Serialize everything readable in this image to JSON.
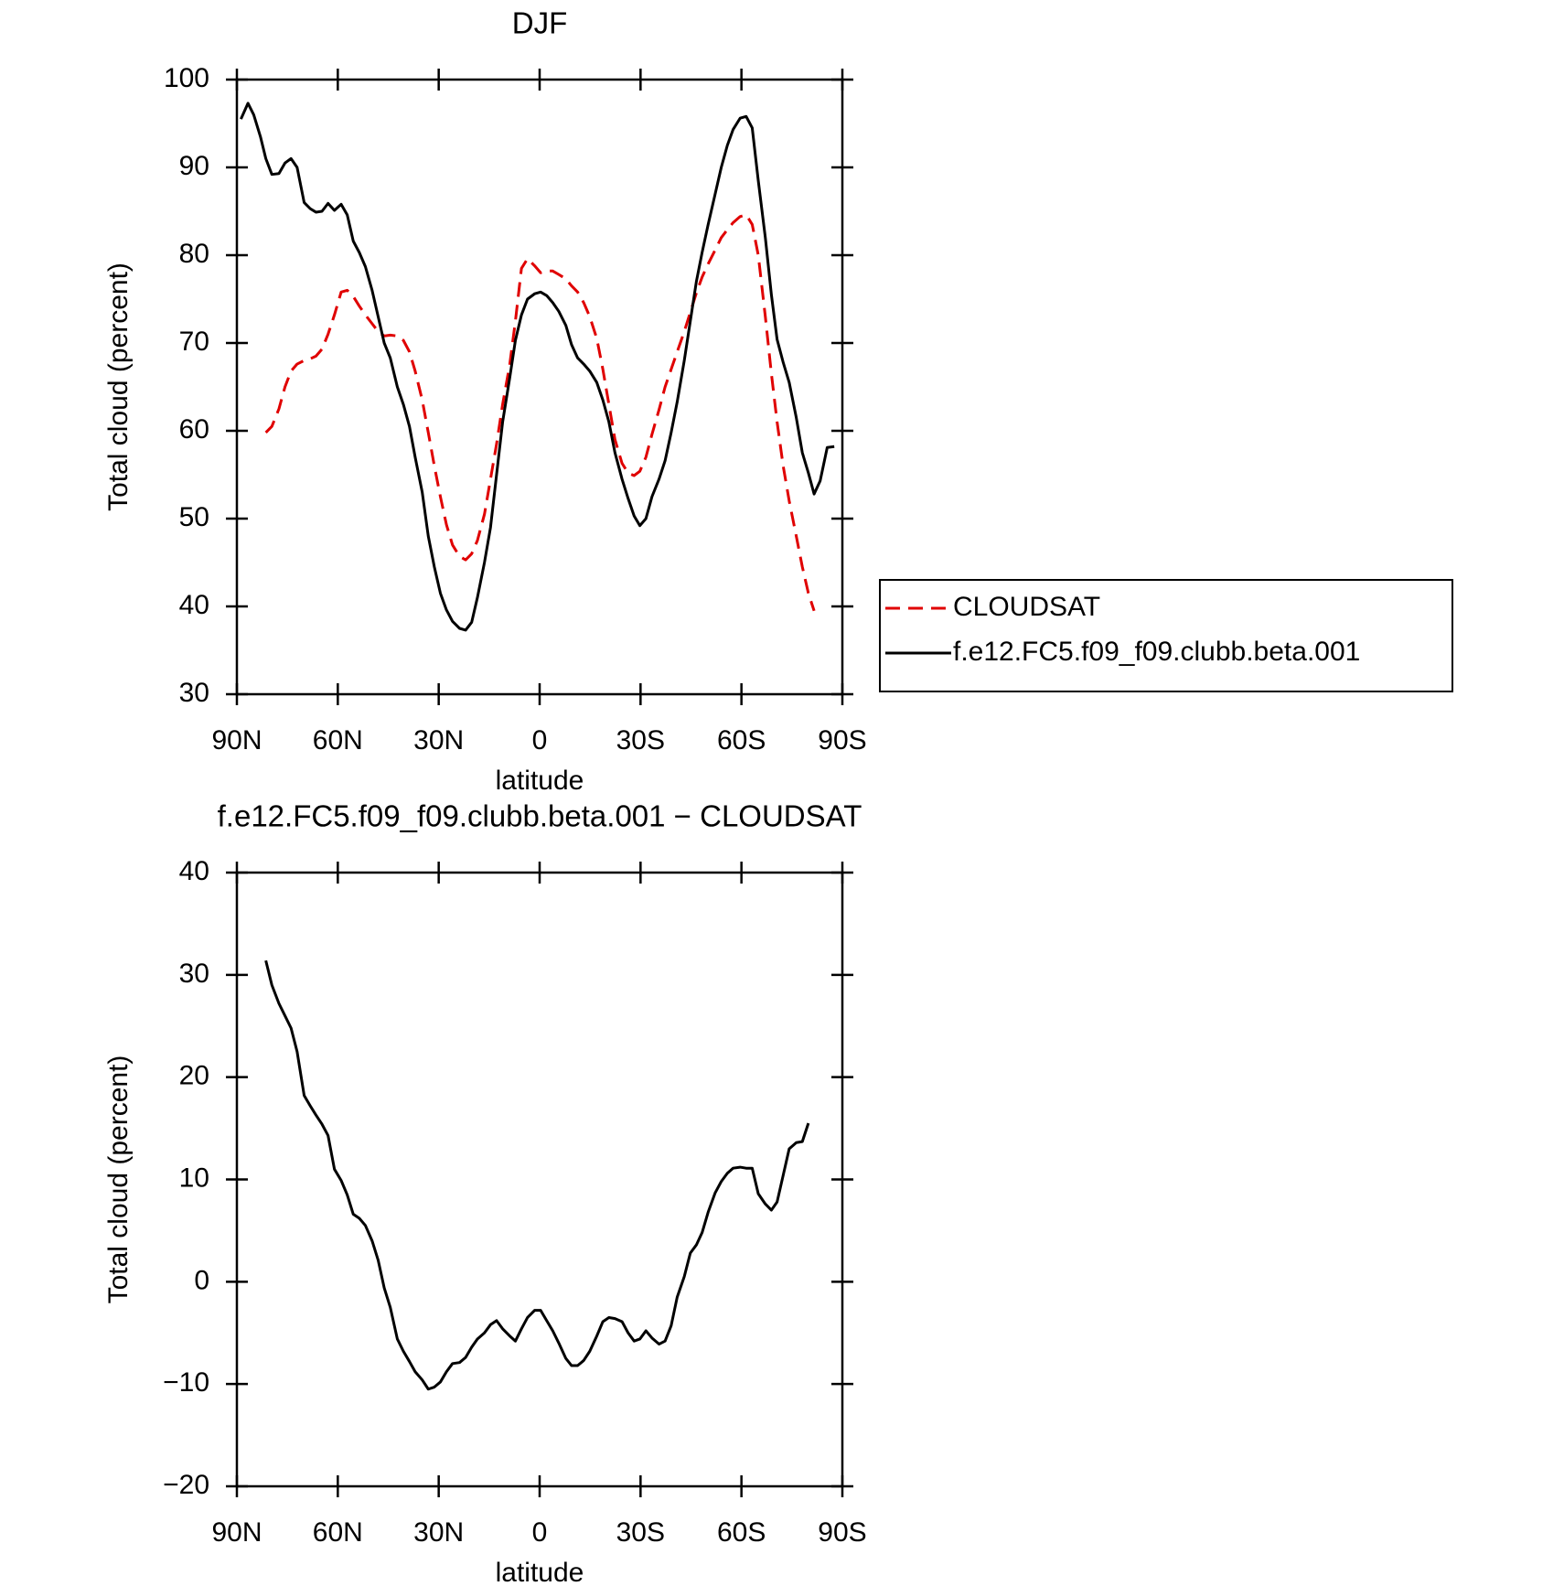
{
  "chart_data": [
    {
      "type": "line",
      "title": "DJF",
      "xlabel": "latitude",
      "ylabel": "Total cloud (percent)",
      "xlim": [
        90,
        -90
      ],
      "ylim": [
        30,
        100
      ],
      "xticks": [
        {
          "value": 90,
          "label": "90N"
        },
        {
          "value": 60,
          "label": "60N"
        },
        {
          "value": 30,
          "label": "30N"
        },
        0,
        {
          "value": -30,
          "label": "30S"
        },
        {
          "value": -60,
          "label": "60S"
        },
        {
          "value": -90,
          "label": "90S"
        }
      ],
      "yticks": [
        30,
        40,
        50,
        60,
        70,
        80,
        90,
        100
      ],
      "legend": "right",
      "x": [
        88.8,
        86.7,
        85,
        83,
        81.4,
        79.6,
        77.5,
        75.7,
        73.9,
        72.1,
        70,
        68.2,
        66.5,
        64.7,
        62.9,
        61,
        59,
        57.2,
        55.4,
        53.6,
        51.8,
        49.8,
        48,
        46.2,
        44.4,
        42.3,
        40.5,
        38.7,
        37,
        34.9,
        33.1,
        31.3,
        29.5,
        27.7,
        25.9,
        23.8,
        22,
        20.2,
        18.5,
        16.4,
        14.6,
        12.8,
        11,
        8.9,
        7.2,
        5.4,
        3.6,
        1.5,
        -0.3,
        -2.1,
        -3.9,
        -5.7,
        -7.8,
        -9.5,
        -11.3,
        -13.1,
        -14.9,
        -17,
        -18.8,
        -20.6,
        -22.4,
        -24.5,
        -26.3,
        -28.1,
        -29.8,
        -31.6,
        -33.4,
        -35.5,
        -37.3,
        -39.1,
        -40.9,
        -43,
        -44.8,
        -46.6,
        -48.3,
        -50.1,
        -52.2,
        -54,
        -55.8,
        -57.5,
        -59.6,
        -61.4,
        -63.2,
        -65,
        -67.1,
        -68.9,
        -70.6,
        -72.4,
        -74.2,
        -76.3,
        -78.1,
        -79.9,
        -81.6,
        -83.4,
        -85.5,
        -87.6
      ],
      "series": [
        {
          "name": "CLOUDSAT",
          "color": "#e00000",
          "dashed": true,
          "values": [
            null,
            null,
            null,
            null,
            59.8,
            60.5,
            62.5,
            65,
            66.8,
            67.6,
            68,
            68.2,
            68.5,
            69.3,
            71,
            73.2,
            75.8,
            76,
            75.3,
            74.2,
            73.2,
            72.2,
            71.3,
            70.8,
            70.9,
            70.8,
            70.3,
            69,
            66.8,
            63.5,
            59.8,
            56,
            52.5,
            49.3,
            47,
            45.7,
            45.3,
            46,
            47.5,
            50.5,
            54.5,
            58.5,
            63,
            67.5,
            72.5,
            78.5,
            79.6,
            78.8,
            78,
            78.2,
            78.2,
            77.8,
            77.3,
            76.5,
            75.8,
            74.6,
            73,
            70.5,
            67,
            63,
            59,
            56.3,
            55.2,
            54.9,
            55.4,
            57,
            59.6,
            62.4,
            65,
            67,
            69,
            71.3,
            73.5,
            75.7,
            77.5,
            79,
            80.6,
            82,
            82.9,
            83.7,
            84.4,
            84.6,
            83.5,
            80,
            73,
            66.5,
            61,
            56,
            52,
            48,
            44.5,
            41.5,
            39.5,
            null,
            null,
            null
          ]
        },
        {
          "name": "f.e12.FC5.f09_f09.clubb.beta.001",
          "color": "#000000",
          "dashed": false,
          "values": [
            95.5,
            97.3,
            96,
            93.5,
            91,
            89.2,
            89.3,
            90.5,
            91,
            90,
            86,
            85.3,
            84.9,
            85,
            85.9,
            85.1,
            85.8,
            84.6,
            81.6,
            80.3,
            78.7,
            76,
            73,
            70,
            68.3,
            65,
            63,
            60.5,
            57,
            53,
            48,
            44.5,
            41.5,
            39.6,
            38.3,
            37.5,
            37.3,
            38.2,
            41,
            45,
            49,
            55,
            61,
            66,
            70.3,
            73.2,
            75,
            75.6,
            75.8,
            75.4,
            74.6,
            73.6,
            72,
            69.8,
            68.3,
            67.6,
            66.8,
            65.5,
            63.5,
            61,
            57.5,
            54.5,
            52.3,
            50.3,
            49.2,
            50,
            52.5,
            54.5,
            56.6,
            59.8,
            63.3,
            68,
            72.5,
            77,
            80.3,
            83.5,
            87,
            90,
            92.5,
            94.3,
            95.6,
            95.8,
            94.5,
            88.5,
            82,
            75.5,
            70.4,
            67.8,
            65.5,
            61.5,
            57.5,
            55.2,
            52.8,
            54.3,
            58.1,
            58.2
          ]
        }
      ]
    },
    {
      "type": "line",
      "title": "f.e12.FC5.f09_f09.clubb.beta.001 − CLOUDSAT",
      "xlabel": "latitude",
      "ylabel": "Total cloud (percent)",
      "xlim": [
        90,
        -90
      ],
      "ylim": [
        -20,
        40
      ],
      "xticks": [
        {
          "value": 90,
          "label": "90N"
        },
        {
          "value": 60,
          "label": "60N"
        },
        {
          "value": 30,
          "label": "30N"
        },
        0,
        {
          "value": -30,
          "label": "30S"
        },
        {
          "value": -60,
          "label": "60S"
        },
        {
          "value": -90,
          "label": "90S"
        }
      ],
      "yticks": [
        {
          "value": -20,
          "label": "−20"
        },
        {
          "value": -10,
          "label": "−10"
        },
        0,
        10,
        20,
        30,
        40
      ],
      "color": "#000000",
      "x": [
        81.4,
        79.6,
        77.5,
        75.7,
        73.9,
        72.1,
        70,
        68.2,
        66.5,
        64.7,
        62.9,
        61,
        59,
        57.2,
        55.4,
        53.6,
        51.8,
        49.8,
        48,
        46.2,
        44.4,
        42.3,
        40.5,
        38.7,
        37,
        34.9,
        33.1,
        31.3,
        29.5,
        27.7,
        25.9,
        23.8,
        22,
        20.2,
        18.5,
        16.4,
        14.6,
        12.8,
        11,
        8.9,
        7.2,
        5.4,
        3.6,
        1.5,
        -0.3,
        -2.1,
        -3.9,
        -5.7,
        -7.8,
        -9.5,
        -11.3,
        -13.1,
        -14.9,
        -17,
        -18.8,
        -20.6,
        -22.4,
        -24.5,
        -26.3,
        -28.1,
        -29.8,
        -31.6,
        -33.4,
        -35.5,
        -37.3,
        -39.1,
        -40.9,
        -43,
        -44.8,
        -46.6,
        -48.3,
        -50.1,
        -52.2,
        -54,
        -55.8,
        -57.5,
        -59.6,
        -61.4,
        -63.2,
        -65,
        -67.1,
        -68.9,
        -70.6,
        -72.4,
        -74.2,
        -76.3,
        -78.1,
        -79.9
      ],
      "values": [
        31.4,
        29,
        27.2,
        26,
        24.8,
        22.5,
        18.2,
        17.2,
        16.3,
        15.4,
        14.3,
        11,
        9.9,
        8.5,
        6.6,
        6.2,
        5.5,
        4,
        2.1,
        -0.6,
        -2.5,
        -5.6,
        -6.8,
        -7.8,
        -8.8,
        -9.6,
        -10.5,
        -10.3,
        -9.8,
        -8.8,
        -8,
        -7.9,
        -7.4,
        -6.4,
        -5.6,
        -5,
        -4.2,
        -3.8,
        -4.6,
        -5.3,
        -5.8,
        -4.6,
        -3.5,
        -2.8,
        -2.8,
        -3.8,
        -4.8,
        -6,
        -7.5,
        -8.2,
        -8.2,
        -7.7,
        -6.8,
        -5.3,
        -3.9,
        -3.5,
        -3.6,
        -3.9,
        -5,
        -5.8,
        -5.6,
        -4.8,
        -5.5,
        -6.1,
        -5.8,
        -4.3,
        -1.5,
        0.5,
        2.8,
        3.6,
        4.8,
        6.8,
        8.7,
        9.8,
        10.6,
        11.1,
        11.2,
        11.1,
        11.1,
        8.6,
        7.6,
        7,
        7.8,
        10.4,
        13,
        13.6,
        13.7,
        15.5
      ]
    }
  ]
}
